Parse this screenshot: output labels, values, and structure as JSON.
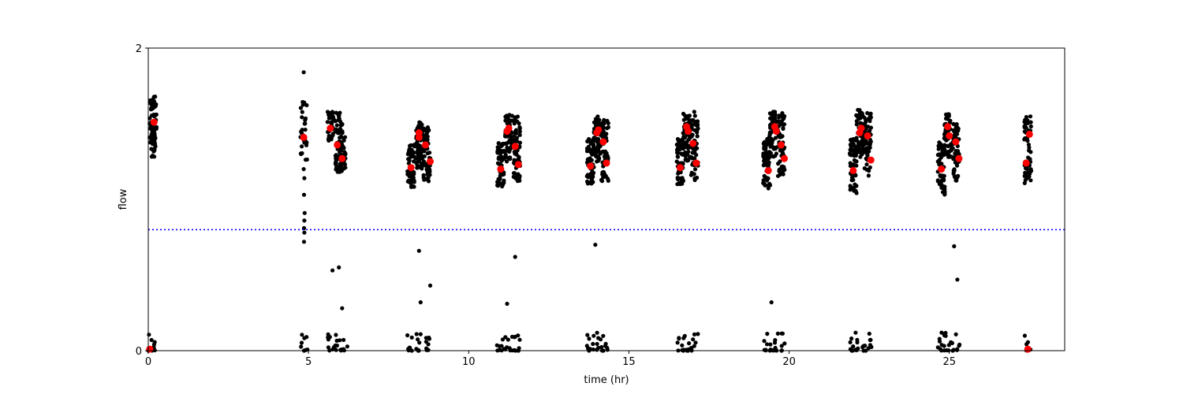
{
  "chart_data": {
    "type": "scatter",
    "title": "",
    "xlabel": "time (hr)",
    "ylabel": "flow",
    "xlim": [
      0,
      28.6
    ],
    "ylim": [
      0,
      2
    ],
    "xticks": [
      0,
      5,
      10,
      15,
      20,
      25
    ],
    "yticks": [
      0,
      2
    ],
    "grid": false,
    "threshold": {
      "y": 0.8,
      "color": "#0000ff",
      "style": "dotted"
    },
    "colors": {
      "samples": "#000000",
      "means": "#ff0000",
      "axes": "#000000"
    },
    "clusters": [
      {
        "x": 0.15,
        "ymin": 1.28,
        "ymax": 1.68,
        "n": 80
      },
      {
        "x": 4.85,
        "ymin": 1.25,
        "ymax": 1.65,
        "n": 30
      },
      {
        "x": 5.7,
        "ymin": 1.38,
        "ymax": 1.58,
        "n": 40
      },
      {
        "x": 5.95,
        "ymin": 1.18,
        "ymax": 1.58,
        "n": 60
      },
      {
        "x": 6.05,
        "ymin": 1.18,
        "ymax": 1.42,
        "n": 30
      },
      {
        "x": 8.2,
        "ymin": 1.08,
        "ymax": 1.36,
        "n": 60
      },
      {
        "x": 8.45,
        "ymin": 1.2,
        "ymax": 1.52,
        "n": 60
      },
      {
        "x": 8.7,
        "ymin": 1.12,
        "ymax": 1.5,
        "n": 60
      },
      {
        "x": 11.0,
        "ymin": 1.08,
        "ymax": 1.38,
        "n": 60
      },
      {
        "x": 11.25,
        "ymin": 1.25,
        "ymax": 1.57,
        "n": 60
      },
      {
        "x": 11.5,
        "ymin": 1.12,
        "ymax": 1.56,
        "n": 60
      },
      {
        "x": 13.8,
        "ymin": 1.1,
        "ymax": 1.4,
        "n": 60
      },
      {
        "x": 14.0,
        "ymin": 1.25,
        "ymax": 1.56,
        "n": 60
      },
      {
        "x": 14.25,
        "ymin": 1.12,
        "ymax": 1.56,
        "n": 60
      },
      {
        "x": 16.6,
        "ymin": 1.1,
        "ymax": 1.4,
        "n": 60
      },
      {
        "x": 16.8,
        "ymin": 1.25,
        "ymax": 1.57,
        "n": 60
      },
      {
        "x": 17.05,
        "ymin": 1.12,
        "ymax": 1.58,
        "n": 60
      },
      {
        "x": 19.3,
        "ymin": 1.06,
        "ymax": 1.42,
        "n": 60
      },
      {
        "x": 19.5,
        "ymin": 1.28,
        "ymax": 1.58,
        "n": 60
      },
      {
        "x": 19.75,
        "ymin": 1.15,
        "ymax": 1.57,
        "n": 60
      },
      {
        "x": 22.0,
        "ymin": 1.04,
        "ymax": 1.4,
        "n": 60
      },
      {
        "x": 22.2,
        "ymin": 1.28,
        "ymax": 1.6,
        "n": 60
      },
      {
        "x": 22.45,
        "ymin": 1.15,
        "ymax": 1.58,
        "n": 60
      },
      {
        "x": 24.75,
        "ymin": 1.03,
        "ymax": 1.38,
        "n": 60
      },
      {
        "x": 24.95,
        "ymin": 1.28,
        "ymax": 1.57,
        "n": 60
      },
      {
        "x": 25.2,
        "ymin": 1.12,
        "ymax": 1.5,
        "n": 60
      },
      {
        "x": 27.45,
        "ymin": 1.1,
        "ymax": 1.55,
        "n": 50
      }
    ],
    "low_clusters": [
      {
        "x": 0.1,
        "n": 10
      },
      {
        "x": 4.85,
        "n": 8
      },
      {
        "x": 5.7,
        "n": 8
      },
      {
        "x": 5.95,
        "n": 8
      },
      {
        "x": 6.1,
        "n": 6
      },
      {
        "x": 8.2,
        "n": 8
      },
      {
        "x": 8.45,
        "n": 8
      },
      {
        "x": 8.7,
        "n": 8
      },
      {
        "x": 11.0,
        "n": 8
      },
      {
        "x": 11.25,
        "n": 8
      },
      {
        "x": 11.5,
        "n": 8
      },
      {
        "x": 13.8,
        "n": 8
      },
      {
        "x": 14.0,
        "n": 8
      },
      {
        "x": 14.25,
        "n": 8
      },
      {
        "x": 16.6,
        "n": 8
      },
      {
        "x": 16.8,
        "n": 8
      },
      {
        "x": 17.05,
        "n": 8
      },
      {
        "x": 19.3,
        "n": 8
      },
      {
        "x": 19.5,
        "n": 8
      },
      {
        "x": 19.75,
        "n": 8
      },
      {
        "x": 22.0,
        "n": 8
      },
      {
        "x": 22.2,
        "n": 8
      },
      {
        "x": 22.45,
        "n": 8
      },
      {
        "x": 24.75,
        "n": 8
      },
      {
        "x": 24.95,
        "n": 8
      },
      {
        "x": 25.2,
        "n": 8
      },
      {
        "x": 27.45,
        "n": 6
      }
    ],
    "outliers": [
      {
        "x": 4.85,
        "y": 1.84
      },
      {
        "x": 4.88,
        "y": 1.5
      },
      {
        "x": 4.85,
        "y": 1.2
      },
      {
        "x": 4.87,
        "y": 1.14
      },
      {
        "x": 4.86,
        "y": 1.03
      },
      {
        "x": 4.88,
        "y": 0.91
      },
      {
        "x": 4.87,
        "y": 0.86
      },
      {
        "x": 4.86,
        "y": 0.81
      },
      {
        "x": 4.87,
        "y": 0.78
      },
      {
        "x": 4.86,
        "y": 0.72
      },
      {
        "x": 5.75,
        "y": 0.53
      },
      {
        "x": 5.95,
        "y": 0.55
      },
      {
        "x": 6.05,
        "y": 0.28
      },
      {
        "x": 8.45,
        "y": 0.66
      },
      {
        "x": 8.5,
        "y": 0.32
      },
      {
        "x": 8.8,
        "y": 0.43
      },
      {
        "x": 11.2,
        "y": 0.31
      },
      {
        "x": 11.45,
        "y": 0.62
      },
      {
        "x": 13.95,
        "y": 0.7
      },
      {
        "x": 19.45,
        "y": 0.32
      },
      {
        "x": 25.15,
        "y": 0.69
      },
      {
        "x": 25.25,
        "y": 0.47
      }
    ],
    "means": [
      {
        "x": 0.18,
        "y": 1.51
      },
      {
        "x": 4.85,
        "y": 1.41
      },
      {
        "x": 5.68,
        "y": 1.47
      },
      {
        "x": 5.9,
        "y": 1.36
      },
      {
        "x": 6.05,
        "y": 1.27
      },
      {
        "x": 8.2,
        "y": 1.21
      },
      {
        "x": 8.45,
        "y": 1.44
      },
      {
        "x": 8.45,
        "y": 1.41
      },
      {
        "x": 8.65,
        "y": 1.36
      },
      {
        "x": 8.8,
        "y": 1.25
      },
      {
        "x": 11.0,
        "y": 1.2
      },
      {
        "x": 11.2,
        "y": 1.45
      },
      {
        "x": 11.25,
        "y": 1.47
      },
      {
        "x": 11.45,
        "y": 1.35
      },
      {
        "x": 11.55,
        "y": 1.23
      },
      {
        "x": 13.8,
        "y": 1.22
      },
      {
        "x": 14.0,
        "y": 1.44
      },
      {
        "x": 14.05,
        "y": 1.46
      },
      {
        "x": 14.2,
        "y": 1.38
      },
      {
        "x": 14.3,
        "y": 1.24
      },
      {
        "x": 16.6,
        "y": 1.21
      },
      {
        "x": 16.8,
        "y": 1.48
      },
      {
        "x": 16.85,
        "y": 1.45
      },
      {
        "x": 17.0,
        "y": 1.37
      },
      {
        "x": 17.1,
        "y": 1.24
      },
      {
        "x": 19.35,
        "y": 1.19
      },
      {
        "x": 19.55,
        "y": 1.48
      },
      {
        "x": 19.6,
        "y": 1.45
      },
      {
        "x": 19.75,
        "y": 1.36
      },
      {
        "x": 19.85,
        "y": 1.27
      },
      {
        "x": 22.0,
        "y": 1.19
      },
      {
        "x": 22.2,
        "y": 1.44
      },
      {
        "x": 22.25,
        "y": 1.47
      },
      {
        "x": 22.45,
        "y": 1.42
      },
      {
        "x": 22.55,
        "y": 1.26
      },
      {
        "x": 24.75,
        "y": 1.2
      },
      {
        "x": 24.95,
        "y": 1.48
      },
      {
        "x": 25.0,
        "y": 1.42
      },
      {
        "x": 25.2,
        "y": 1.38
      },
      {
        "x": 25.3,
        "y": 1.27
      },
      {
        "x": 27.4,
        "y": 1.24
      },
      {
        "x": 27.5,
        "y": 1.43
      },
      {
        "x": 0.05,
        "y": 0.01
      },
      {
        "x": 27.45,
        "y": 0.01
      }
    ]
  }
}
